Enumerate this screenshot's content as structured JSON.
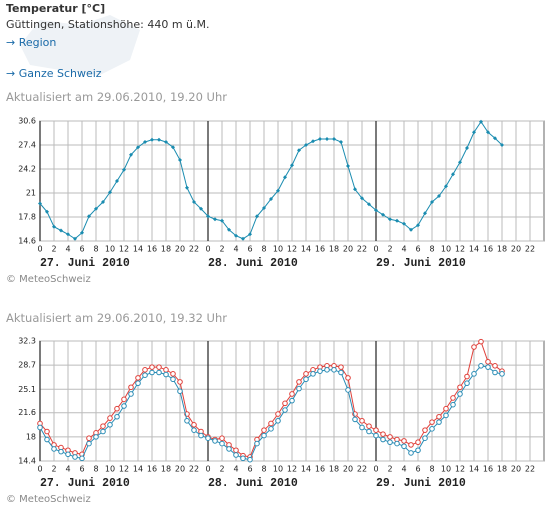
{
  "header": {
    "title": "Temperatur [°C]",
    "location": "Güttingen, Stationshöhe: 440 m ü.M.",
    "links": [
      "→ Region",
      "→ Ganze Schweiz"
    ]
  },
  "sections": [
    {
      "updated": "Aktualisiert am 29.06.2010, 19.20 Uhr",
      "credit": "© MeteoSchweiz"
    },
    {
      "updated": "Aktualisiert am 29.06.2010, 19.32 Uhr",
      "credit": "© MeteoSchweiz"
    }
  ],
  "chart_data": [
    {
      "type": "line",
      "x": [
        0,
        1,
        2,
        3,
        4,
        5,
        6,
        7,
        8,
        9,
        10,
        11,
        12,
        13,
        14,
        15,
        16,
        17,
        18,
        19,
        20,
        21,
        22,
        23,
        24,
        25,
        26,
        27,
        28,
        29,
        30,
        31,
        32,
        33,
        34,
        35,
        36,
        37,
        38,
        39,
        40,
        41,
        42,
        43,
        44,
        45,
        46,
        47,
        48,
        49,
        50,
        51,
        52,
        53,
        54,
        55,
        56,
        57,
        58,
        59,
        60,
        61,
        62,
        63,
        64,
        65,
        66
      ],
      "series": [
        {
          "color": "#1a8cb0",
          "marker": "diamond",
          "values": [
            19.6,
            18.5,
            16.5,
            16.0,
            15.5,
            14.9,
            15.7,
            17.9,
            18.9,
            19.8,
            21.1,
            22.6,
            24.1,
            26.1,
            27.1,
            27.8,
            28.1,
            28.1,
            27.8,
            27.1,
            25.4,
            21.7,
            19.8,
            18.9,
            17.9,
            17.5,
            17.3,
            16.1,
            15.3,
            14.9,
            15.5,
            17.9,
            19.0,
            20.2,
            21.3,
            23.1,
            24.7,
            26.7,
            27.4,
            27.9,
            28.2,
            28.2,
            28.2,
            27.8,
            24.6,
            21.5,
            20.3,
            19.5,
            18.7,
            18.1,
            17.5,
            17.3,
            16.9,
            16.1,
            16.7,
            18.3,
            19.8,
            20.6,
            21.9,
            23.5,
            25.1,
            27.0,
            29.1,
            30.5,
            29.1,
            28.3,
            27.4
          ]
        }
      ],
      "xlim": [
        0,
        72
      ],
      "xticks": [
        0,
        2,
        4,
        6,
        8,
        10,
        12,
        14,
        16,
        18,
        20,
        22,
        {
          "value": 24,
          "label": "0"
        },
        {
          "value": 26,
          "label": "2"
        },
        {
          "value": 28,
          "label": "4"
        },
        {
          "value": 30,
          "label": "6"
        },
        {
          "value": 32,
          "label": "8"
        },
        {
          "value": 34,
          "label": "10"
        },
        {
          "value": 36,
          "label": "12"
        },
        {
          "value": 38,
          "label": "14"
        },
        {
          "value": 40,
          "label": "16"
        },
        {
          "value": 42,
          "label": "18"
        },
        {
          "value": 44,
          "label": "20"
        },
        {
          "value": 46,
          "label": "22"
        },
        {
          "value": 48,
          "label": "0"
        },
        {
          "value": 50,
          "label": "2"
        },
        {
          "value": 52,
          "label": "4"
        },
        {
          "value": 54,
          "label": "6"
        },
        {
          "value": 56,
          "label": "8"
        },
        {
          "value": 58,
          "label": "10"
        },
        {
          "value": 60,
          "label": "12"
        },
        {
          "value": 62,
          "label": "14"
        },
        {
          "value": 64,
          "label": "16"
        },
        {
          "value": 66,
          "label": "18"
        },
        {
          "value": 68,
          "label": "20"
        },
        {
          "value": 70,
          "label": "22"
        }
      ],
      "day_labels": [
        {
          "value": 0,
          "label": "27. Juni 2010"
        },
        {
          "value": 24,
          "label": "28. Juni 2010"
        },
        {
          "value": 48,
          "label": "29. Juni 2010"
        }
      ],
      "ylim": [
        14.6,
        30.6
      ],
      "yticks": [
        14.6,
        17.8,
        21.0,
        24.2,
        27.4,
        30.6
      ],
      "grid": true
    },
    {
      "type": "line",
      "x": [
        0,
        1,
        2,
        3,
        4,
        5,
        6,
        7,
        8,
        9,
        10,
        11,
        12,
        13,
        14,
        15,
        16,
        17,
        18,
        19,
        20,
        21,
        22,
        23,
        24,
        25,
        26,
        27,
        28,
        29,
        30,
        31,
        32,
        33,
        34,
        35,
        36,
        37,
        38,
        39,
        40,
        41,
        42,
        43,
        44,
        45,
        46,
        47,
        48,
        49,
        50,
        51,
        52,
        53,
        54,
        55,
        56,
        57,
        58,
        59,
        60,
        61,
        62,
        63,
        64,
        65,
        66
      ],
      "series": [
        {
          "color": "#e0403a",
          "marker": "circle",
          "values": [
            20.0,
            18.8,
            16.8,
            16.4,
            16.0,
            15.6,
            15.4,
            17.8,
            18.6,
            19.6,
            20.8,
            22.2,
            23.6,
            25.4,
            26.8,
            28.0,
            28.4,
            28.4,
            28.0,
            27.4,
            26.2,
            21.4,
            19.8,
            18.8,
            18.0,
            17.6,
            17.8,
            16.8,
            16.0,
            15.2,
            15.0,
            17.6,
            19.0,
            20.0,
            21.4,
            23.0,
            24.4,
            26.2,
            27.4,
            28.0,
            28.4,
            28.6,
            28.6,
            28.4,
            26.8,
            21.4,
            20.4,
            19.6,
            19.0,
            18.4,
            18.0,
            17.6,
            17.4,
            16.8,
            17.2,
            19.0,
            20.2,
            21.0,
            22.2,
            23.8,
            25.4,
            27.0,
            31.4,
            32.2,
            29.2,
            28.6,
            27.8
          ]
        },
        {
          "color": "#2a8cb5",
          "marker": "circle",
          "values": [
            19.4,
            17.6,
            16.2,
            15.8,
            15.4,
            15.0,
            14.8,
            17.0,
            18.0,
            18.8,
            19.8,
            21.0,
            22.6,
            24.4,
            26.0,
            27.2,
            27.6,
            27.6,
            27.3,
            26.6,
            24.8,
            20.4,
            19.0,
            18.2,
            17.8,
            17.4,
            17.0,
            16.2,
            15.3,
            14.8,
            14.6,
            17.0,
            18.2,
            19.2,
            20.4,
            22.0,
            23.4,
            25.2,
            26.6,
            27.4,
            27.8,
            28.0,
            28.0,
            27.6,
            25.0,
            20.6,
            19.4,
            18.8,
            18.2,
            17.6,
            17.2,
            17.0,
            16.6,
            15.6,
            16.0,
            17.8,
            19.2,
            20.2,
            21.2,
            22.8,
            24.4,
            26.0,
            27.4,
            28.6,
            28.4,
            27.6,
            27.4
          ]
        }
      ],
      "xlim": [
        0,
        72
      ],
      "xticks": [
        0,
        2,
        4,
        6,
        8,
        10,
        12,
        14,
        16,
        18,
        20,
        22,
        {
          "value": 24,
          "label": "0"
        },
        {
          "value": 26,
          "label": "2"
        },
        {
          "value": 28,
          "label": "4"
        },
        {
          "value": 30,
          "label": "6"
        },
        {
          "value": 32,
          "label": "8"
        },
        {
          "value": 34,
          "label": "10"
        },
        {
          "value": 36,
          "label": "12"
        },
        {
          "value": 38,
          "label": "14"
        },
        {
          "value": 40,
          "label": "16"
        },
        {
          "value": 42,
          "label": "18"
        },
        {
          "value": 44,
          "label": "20"
        },
        {
          "value": 46,
          "label": "22"
        },
        {
          "value": 48,
          "label": "0"
        },
        {
          "value": 50,
          "label": "2"
        },
        {
          "value": 52,
          "label": "4"
        },
        {
          "value": 54,
          "label": "6"
        },
        {
          "value": 56,
          "label": "8"
        },
        {
          "value": 58,
          "label": "10"
        },
        {
          "value": 60,
          "label": "12"
        },
        {
          "value": 62,
          "label": "14"
        },
        {
          "value": 64,
          "label": "16"
        },
        {
          "value": 66,
          "label": "18"
        },
        {
          "value": 68,
          "label": "20"
        },
        {
          "value": 70,
          "label": "22"
        }
      ],
      "day_labels": [
        {
          "value": 0,
          "label": "27. Juni 2010"
        },
        {
          "value": 24,
          "label": "28. Juni 2010"
        },
        {
          "value": 48,
          "label": "29. Juni 2010"
        }
      ],
      "ylim": [
        14.4,
        32.3
      ],
      "yticks": [
        14.4,
        18.0,
        21.6,
        25.1,
        28.7,
        32.3
      ],
      "grid": true
    }
  ]
}
